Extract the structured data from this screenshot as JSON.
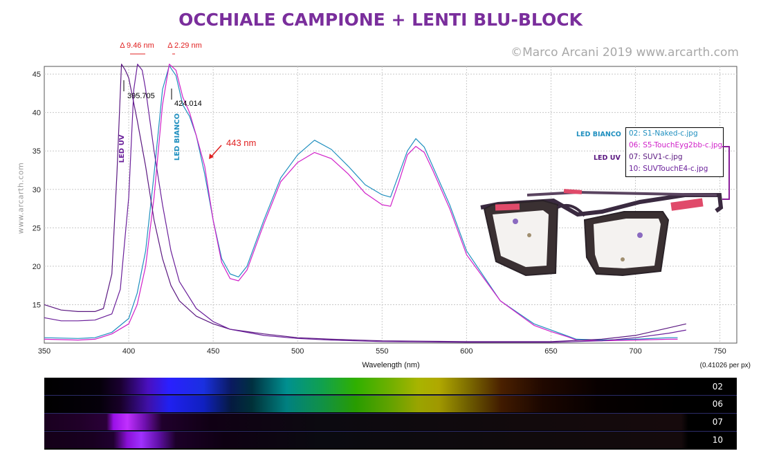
{
  "title": "OCCHIALE CAMPIONE  + LENTI BLU-BLOCK",
  "copyright": "©Marco Arcani 2019 www.arcarth.com",
  "side_url": "www.arcarth.com",
  "resolution_note": "(0.41026 per px)",
  "annotations": {
    "delta1": "Δ 9.46 nm",
    "delta2": "Δ 2.29 nm",
    "peak1": "395.705",
    "peak2": "424.014",
    "marker": "443 nm",
    "led_uv_vertical": "LED UV",
    "led_bianco_vertical": "LED BIANCO"
  },
  "legend": {
    "tag_bianco": "LED BIANCO",
    "tag_uv": "LED UV",
    "items": [
      {
        "label": "02: S1-Naked-c.jpg",
        "color": "#1f8fbf"
      },
      {
        "label": "06: S5-TouchEyg2bb-c.jpg",
        "color": "#d01fc8"
      },
      {
        "label": "07: SUV1-c.jpg",
        "color": "#5a1780"
      },
      {
        "label": "10: SUVTouchE4-c.jpg",
        "color": "#6a1f9a"
      }
    ]
  },
  "strips": [
    {
      "label": "02"
    },
    {
      "label": "06"
    },
    {
      "label": "07"
    },
    {
      "label": "10"
    }
  ],
  "chart_data": {
    "type": "line",
    "title": "OCCHIALE CAMPIONE  + LENTI BLU-BLOCK",
    "xlabel": "Wavelength (nm)",
    "ylabel": "",
    "xlim": [
      350,
      760
    ],
    "ylim": [
      10,
      46
    ],
    "xticks": [
      350,
      400,
      450,
      500,
      550,
      600,
      650,
      700,
      750
    ],
    "yticks": [
      15,
      20,
      25,
      30,
      35,
      40,
      45
    ],
    "grid": true,
    "series": [
      {
        "name": "02: S1-Naked-c.jpg",
        "color": "#1f8fbf",
        "x": [
          350,
          370,
          380,
          390,
          400,
          405,
          410,
          415,
          420,
          424,
          428,
          432,
          436,
          440,
          445,
          450,
          455,
          460,
          465,
          470,
          480,
          490,
          500,
          510,
          520,
          530,
          540,
          550,
          555,
          560,
          565,
          570,
          575,
          580,
          590,
          600,
          620,
          640,
          650,
          660,
          665,
          680,
          700,
          720,
          725
        ],
        "y": [
          10.7,
          10.6,
          10.7,
          11.4,
          13.2,
          16.5,
          22,
          32,
          43,
          46.1,
          44.8,
          41,
          39.5,
          37,
          32,
          26,
          21,
          19,
          18.6,
          20,
          26,
          31.5,
          34.5,
          36.4,
          35.2,
          33,
          30.6,
          29.3,
          29,
          32,
          35,
          36.6,
          35.5,
          33,
          28,
          22,
          15.5,
          12.5,
          11.7,
          10.9,
          10.5,
          10.4,
          10.5,
          10.7,
          10.7
        ]
      },
      {
        "name": "06: S5-TouchEyg2bb-c.jpg",
        "color": "#d01fc8",
        "x": [
          350,
          370,
          380,
          390,
          400,
          405,
          410,
          415,
          420,
          424,
          428,
          432,
          436,
          440,
          445,
          450,
          455,
          460,
          465,
          470,
          480,
          490,
          500,
          510,
          520,
          530,
          540,
          550,
          555,
          560,
          565,
          570,
          575,
          580,
          590,
          600,
          620,
          640,
          650,
          660,
          665,
          680,
          700,
          720,
          725
        ],
        "y": [
          10.5,
          10.4,
          10.5,
          11.2,
          12.5,
          15,
          20,
          29,
          41,
          46.3,
          45.5,
          42,
          40,
          37,
          33,
          26,
          20.5,
          18.4,
          18.1,
          19.5,
          25.5,
          31,
          33.5,
          34.8,
          34,
          32,
          29.5,
          28,
          27.8,
          31,
          34.5,
          35.6,
          34.8,
          32.5,
          27.5,
          21.5,
          15.5,
          12.3,
          11.5,
          10.8,
          10.4,
          10.3,
          10.4,
          10.5,
          10.5
        ]
      },
      {
        "name": "07: SUV1-c.jpg",
        "color": "#5a1780",
        "x": [
          350,
          360,
          370,
          380,
          385,
          390,
          393,
          395.7,
          398,
          400,
          405,
          410,
          415,
          420,
          425,
          430,
          440,
          450,
          460,
          480,
          500,
          520,
          550,
          600,
          650,
          680,
          700,
          720,
          730
        ],
        "y": [
          15,
          14.3,
          14.1,
          14.1,
          14.5,
          19,
          32,
          46.3,
          45.5,
          44.5,
          39,
          33,
          26,
          21,
          17.5,
          15.5,
          13.5,
          12.5,
          11.8,
          11.2,
          10.7,
          10.5,
          10.3,
          10.2,
          10.2,
          10.5,
          11,
          12,
          12.5
        ]
      },
      {
        "name": "10: SUVTouchE4-c.jpg",
        "color": "#6a1f9a",
        "x": [
          350,
          360,
          370,
          380,
          390,
          395,
          400,
          403,
          405.2,
          408,
          410,
          415,
          420,
          425,
          430,
          440,
          450,
          460,
          480,
          500,
          520,
          550,
          600,
          650,
          680,
          700,
          720,
          730
        ],
        "y": [
          13.3,
          12.9,
          12.9,
          13,
          13.8,
          17,
          29,
          43,
          46.3,
          45.5,
          43,
          35,
          28,
          22,
          18,
          14.5,
          12.8,
          11.8,
          11,
          10.6,
          10.4,
          10.2,
          10.1,
          10.1,
          10.3,
          10.7,
          11.3,
          11.7
        ]
      }
    ]
  }
}
